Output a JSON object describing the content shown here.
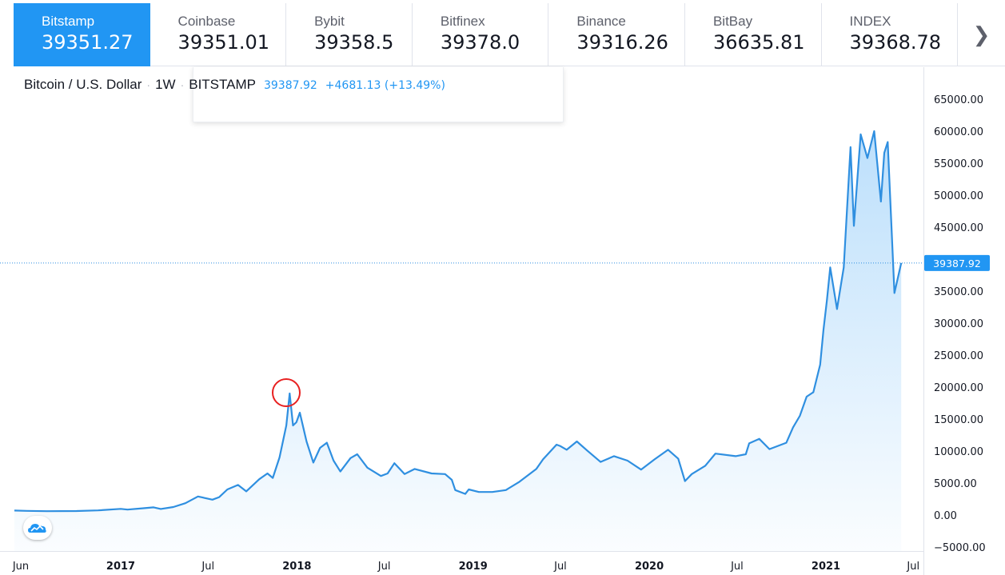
{
  "tabs": [
    {
      "name": "Bitstamp",
      "value": "39351.27"
    },
    {
      "name": "Coinbase",
      "value": "39351.01"
    },
    {
      "name": "Bybit",
      "value": "39358.5"
    },
    {
      "name": "Bitfinex",
      "value": "39378.0"
    },
    {
      "name": "Binance",
      "value": "39316.26"
    },
    {
      "name": "BitBay",
      "value": "36635.81"
    },
    {
      "name": "INDEX",
      "value": "39368.78"
    }
  ],
  "legend": {
    "symbol": "Bitcoin / U.S. Dollar",
    "interval": "1W",
    "exchange": "BITSTAMP",
    "last": "39387.92",
    "change": "+4681.13 (+13.49%)"
  },
  "colors": {
    "accent": "#2196f3",
    "line": "#2f8fe0",
    "annotation": "#e82020"
  },
  "icons": {
    "next_tabs": "chevron-right-icon",
    "logo": "tradingview-cloud-icon"
  },
  "chart_data": {
    "type": "area",
    "title": "Bitcoin / U.S. Dollar",
    "ylim": [
      -5000,
      68000
    ],
    "y_ticks": [
      "65000.00",
      "60000.00",
      "55000.00",
      "50000.00",
      "45000.00",
      "40000.00",
      "35000.00",
      "30000.00",
      "25000.00",
      "20000.00",
      "15000.00",
      "10000.00",
      "5000.00",
      "0.00",
      "−5000.00"
    ],
    "x_ticks": [
      {
        "label": "Jun",
        "date": "2016-06-01"
      },
      {
        "label": "2017",
        "date": "2017-01-01"
      },
      {
        "label": "Jul",
        "date": "2017-07-01"
      },
      {
        "label": "2018",
        "date": "2018-01-01"
      },
      {
        "label": "Jul",
        "date": "2018-07-01"
      },
      {
        "label": "2019",
        "date": "2019-01-01"
      },
      {
        "label": "Jul",
        "date": "2019-07-01"
      },
      {
        "label": "2020",
        "date": "2020-01-01"
      },
      {
        "label": "Jul",
        "date": "2020-07-01"
      },
      {
        "label": "2021",
        "date": "2021-01-01"
      },
      {
        "label": "Jul",
        "date": "2021-07-01"
      }
    ],
    "current_price_label": "39387.92",
    "current_price": 39387.92,
    "series": [
      {
        "points": [
          [
            "2016-05-23",
            700
          ],
          [
            "2016-06-20",
            650
          ],
          [
            "2016-08-01",
            600
          ],
          [
            "2016-10-01",
            620
          ],
          [
            "2016-11-15",
            730
          ],
          [
            "2017-01-01",
            960
          ],
          [
            "2017-01-15",
            850
          ],
          [
            "2017-02-15",
            1050
          ],
          [
            "2017-03-10",
            1200
          ],
          [
            "2017-03-25",
            950
          ],
          [
            "2017-04-20",
            1250
          ],
          [
            "2017-05-15",
            1850
          ],
          [
            "2017-06-10",
            2900
          ],
          [
            "2017-07-10",
            2400
          ],
          [
            "2017-07-24",
            2800
          ],
          [
            "2017-08-10",
            4000
          ],
          [
            "2017-09-01",
            4700
          ],
          [
            "2017-09-18",
            3700
          ],
          [
            "2017-10-15",
            5600
          ],
          [
            "2017-11-01",
            6500
          ],
          [
            "2017-11-12",
            5800
          ],
          [
            "2017-11-26",
            9000
          ],
          [
            "2017-12-10",
            14000
          ],
          [
            "2017-12-17",
            19000
          ],
          [
            "2017-12-24",
            14000
          ],
          [
            "2017-12-31",
            14500
          ],
          [
            "2018-01-07",
            16000
          ],
          [
            "2018-01-21",
            11500
          ],
          [
            "2018-02-04",
            8200
          ],
          [
            "2018-02-18",
            10500
          ],
          [
            "2018-03-04",
            11300
          ],
          [
            "2018-03-18",
            8500
          ],
          [
            "2018-04-01",
            6800
          ],
          [
            "2018-04-22",
            8900
          ],
          [
            "2018-05-06",
            9500
          ],
          [
            "2018-05-27",
            7400
          ],
          [
            "2018-06-24",
            6100
          ],
          [
            "2018-07-08",
            6500
          ],
          [
            "2018-07-22",
            8100
          ],
          [
            "2018-08-12",
            6400
          ],
          [
            "2018-09-02",
            7200
          ],
          [
            "2018-10-07",
            6500
          ],
          [
            "2018-11-04",
            6400
          ],
          [
            "2018-11-18",
            5500
          ],
          [
            "2018-11-25",
            3900
          ],
          [
            "2018-12-16",
            3300
          ],
          [
            "2018-12-23",
            4000
          ],
          [
            "2019-01-13",
            3600
          ],
          [
            "2019-02-10",
            3600
          ],
          [
            "2019-03-10",
            3900
          ],
          [
            "2019-04-07",
            5200
          ],
          [
            "2019-05-12",
            7200
          ],
          [
            "2019-05-26",
            8700
          ],
          [
            "2019-06-23",
            11000
          ],
          [
            "2019-06-30",
            10800
          ],
          [
            "2019-07-14",
            10200
          ],
          [
            "2019-08-04",
            11500
          ],
          [
            "2019-08-25",
            10100
          ],
          [
            "2019-09-22",
            8300
          ],
          [
            "2019-10-20",
            9200
          ],
          [
            "2019-11-17",
            8500
          ],
          [
            "2019-12-15",
            7100
          ],
          [
            "2020-01-12",
            8700
          ],
          [
            "2020-02-09",
            10200
          ],
          [
            "2020-03-01",
            8800
          ],
          [
            "2020-03-15",
            5300
          ],
          [
            "2020-03-29",
            6400
          ],
          [
            "2020-04-26",
            7700
          ],
          [
            "2020-05-17",
            9600
          ],
          [
            "2020-06-28",
            9200
          ],
          [
            "2020-07-19",
            9500
          ],
          [
            "2020-07-26",
            11200
          ],
          [
            "2020-08-16",
            11900
          ],
          [
            "2020-09-06",
            10300
          ],
          [
            "2020-10-11",
            11300
          ],
          [
            "2020-10-25",
            13700
          ],
          [
            "2020-11-08",
            15500
          ],
          [
            "2020-11-22",
            18500
          ],
          [
            "2020-12-06",
            19200
          ],
          [
            "2020-12-20",
            23500
          ],
          [
            "2020-12-27",
            29000
          ],
          [
            "2021-01-03",
            33500
          ],
          [
            "2021-01-10",
            38700
          ],
          [
            "2021-01-24",
            32200
          ],
          [
            "2021-02-07",
            38700
          ],
          [
            "2021-02-21",
            57500
          ],
          [
            "2021-02-28",
            45200
          ],
          [
            "2021-03-14",
            59500
          ],
          [
            "2021-03-28",
            55800
          ],
          [
            "2021-04-11",
            60000
          ],
          [
            "2021-04-25",
            49000
          ],
          [
            "2021-05-02",
            56600
          ],
          [
            "2021-05-09",
            58300
          ],
          [
            "2021-05-23",
            34700
          ],
          [
            "2021-06-06",
            39388
          ]
        ]
      }
    ]
  }
}
